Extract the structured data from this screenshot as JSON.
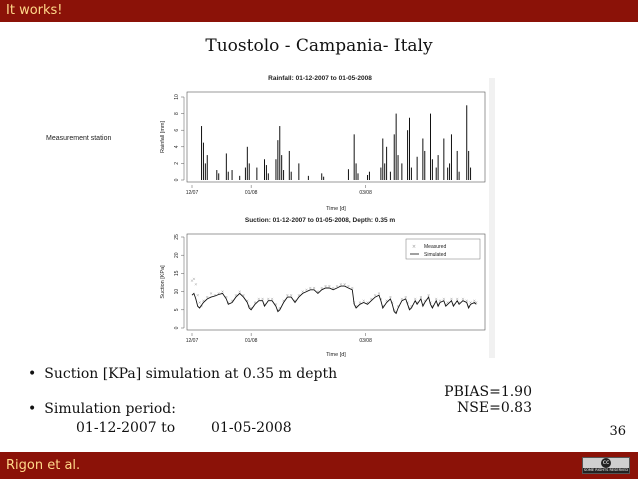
{
  "header": {
    "label": "It works!"
  },
  "footer": {
    "author": "Rigon et al.",
    "license_symbol": "cc",
    "license_text": "SOME RIGHTS RESERVED"
  },
  "slide": {
    "title": "Tuostolo - Campania- Italy",
    "station_label": "Measurement station",
    "bullets": {
      "b1": "Suction [KPa] simulation at 0.35 m depth",
      "b2": "Simulation period:",
      "start": "01-12-2007 to",
      "end": "01-05-2008"
    },
    "stats": {
      "pbias": "PBIAS=1.90",
      "nse": "NSE=0.83"
    },
    "page_number": "36"
  },
  "chart_data": [
    {
      "type": "bar",
      "title": "Rainfall: 01-12-2007 to 01-05-2008",
      "xlabel": "Time [d]",
      "ylabel": "Rainfall [mm]",
      "ylim": [
        0,
        10
      ],
      "yticks": [
        0,
        2,
        4,
        6,
        8,
        10
      ],
      "xticks": [
        "12/07",
        "01/08",
        "03/08"
      ],
      "x_day_range": [
        0,
        152
      ],
      "xtick_days": [
        0,
        31,
        91
      ],
      "series": [
        {
          "values": [
            [
              5,
              6.5
            ],
            [
              6,
              4.5
            ],
            [
              7,
              2
            ],
            [
              8,
              3
            ],
            [
              13,
              1.2
            ],
            [
              14,
              0.8
            ],
            [
              18,
              3.2
            ],
            [
              19,
              1
            ],
            [
              21,
              1.2
            ],
            [
              25,
              0.5
            ],
            [
              28,
              1.5
            ],
            [
              29,
              4
            ],
            [
              30,
              2
            ],
            [
              34,
              1.5
            ],
            [
              38,
              2.5
            ],
            [
              39,
              1.8
            ],
            [
              40,
              0.8
            ],
            [
              44,
              2.5
            ],
            [
              45,
              4.8
            ],
            [
              46,
              6.5
            ],
            [
              47,
              3
            ],
            [
              48,
              1.2
            ],
            [
              51,
              3.5
            ],
            [
              52,
              1
            ],
            [
              56,
              2
            ],
            [
              61,
              0.5
            ],
            [
              68,
              0.8
            ],
            [
              69,
              0.4
            ],
            [
              82,
              1.3
            ],
            [
              85,
              5.5
            ],
            [
              86,
              2
            ],
            [
              87,
              0.8
            ],
            [
              92,
              0.6
            ],
            [
              93,
              1
            ],
            [
              99,
              1.5
            ],
            [
              100,
              5
            ],
            [
              101,
              2
            ],
            [
              102,
              4
            ],
            [
              104,
              1
            ],
            [
              106,
              5.5
            ],
            [
              107,
              8
            ],
            [
              108,
              3
            ],
            [
              110,
              2
            ],
            [
              113,
              6
            ],
            [
              114,
              7.5
            ],
            [
              115,
              1.5
            ],
            [
              118,
              2.8
            ],
            [
              121,
              5
            ],
            [
              122,
              3.5
            ],
            [
              125,
              8
            ],
            [
              126,
              2.5
            ],
            [
              128,
              1.5
            ],
            [
              129,
              3
            ],
            [
              132,
              5
            ],
            [
              134,
              1.5
            ],
            [
              135,
              2
            ],
            [
              136,
              5.5
            ],
            [
              139,
              3.5
            ],
            [
              140,
              1
            ],
            [
              144,
              9
            ],
            [
              145,
              3.5
            ],
            [
              146,
              1.5
            ]
          ]
        }
      ]
    },
    {
      "type": "line",
      "title": "Suction: 01-12-2007 to 01-05-2008, Depth: 0.35 m",
      "xlabel": "Time [d]",
      "ylabel": "Suction [KPa]",
      "ylim": [
        0,
        25
      ],
      "yticks": [
        0,
        5,
        10,
        15,
        20,
        25
      ],
      "xticks": [
        "12/07",
        "01/08",
        "03/08"
      ],
      "x_day_range": [
        0,
        152
      ],
      "xtick_days": [
        0,
        31,
        91
      ],
      "legend": "top-right",
      "series": [
        {
          "name": "Measured",
          "style": "points",
          "color": "#9a9a9a",
          "values": [
            [
              0,
              13
            ],
            [
              1,
              13.5
            ],
            [
              2,
              12
            ],
            [
              3,
              9
            ],
            [
              4,
              7
            ],
            [
              5,
              6
            ],
            [
              6,
              7.5
            ],
            [
              8,
              8.5
            ],
            [
              10,
              9.5
            ],
            [
              12,
              9
            ],
            [
              14,
              9.5
            ],
            [
              16,
              10
            ],
            [
              18,
              8.5
            ],
            [
              19,
              7
            ],
            [
              21,
              7.5
            ],
            [
              23,
              9
            ],
            [
              25,
              10
            ],
            [
              27,
              9
            ],
            [
              29,
              7.5
            ],
            [
              30,
              6
            ],
            [
              31,
              5.5
            ],
            [
              33,
              7
            ],
            [
              35,
              8
            ],
            [
              37,
              8
            ],
            [
              38,
              6.5
            ],
            [
              40,
              8
            ],
            [
              42,
              8
            ],
            [
              44,
              6.5
            ],
            [
              45,
              5
            ],
            [
              46,
              5.5
            ],
            [
              48,
              7.5
            ],
            [
              50,
              9
            ],
            [
              52,
              9
            ],
            [
              54,
              7.5
            ],
            [
              56,
              9
            ],
            [
              58,
              10
            ],
            [
              60,
              10.5
            ],
            [
              62,
              11
            ],
            [
              64,
              11
            ],
            [
              66,
              10
            ],
            [
              68,
              11
            ],
            [
              70,
              11.5
            ],
            [
              72,
              11.5
            ],
            [
              74,
              11
            ],
            [
              76,
              11.5
            ],
            [
              78,
              12
            ],
            [
              80,
              12
            ],
            [
              82,
              11.5
            ],
            [
              84,
              11
            ],
            [
              85,
              7
            ],
            [
              86,
              6
            ],
            [
              88,
              7
            ],
            [
              90,
              7.5
            ],
            [
              92,
              7
            ],
            [
              94,
              8
            ],
            [
              96,
              9
            ],
            [
              98,
              9.5
            ],
            [
              99,
              8
            ],
            [
              100,
              6
            ],
            [
              102,
              7.5
            ],
            [
              104,
              8.5
            ],
            [
              105,
              7
            ],
            [
              106,
              5
            ],
            [
              107,
              4.5
            ],
            [
              108,
              6
            ],
            [
              110,
              8
            ],
            [
              112,
              8.5
            ],
            [
              113,
              7
            ],
            [
              114,
              5.5
            ],
            [
              115,
              6
            ],
            [
              117,
              8
            ],
            [
              118,
              7
            ],
            [
              120,
              8.5
            ],
            [
              121,
              6.5
            ],
            [
              122,
              7.5
            ],
            [
              124,
              9
            ],
            [
              125,
              7
            ],
            [
              126,
              6
            ],
            [
              128,
              8
            ],
            [
              129,
              6.5
            ],
            [
              130,
              7.5
            ],
            [
              132,
              8
            ],
            [
              133,
              6.5
            ],
            [
              134,
              7
            ],
            [
              136,
              8
            ],
            [
              137,
              6.5
            ],
            [
              139,
              8
            ],
            [
              140,
              7
            ],
            [
              142,
              8
            ],
            [
              144,
              7.5
            ],
            [
              145,
              6
            ],
            [
              146,
              7
            ],
            [
              148,
              7.5
            ],
            [
              149,
              7
            ]
          ]
        },
        {
          "name": "Simulated",
          "style": "line",
          "color": "#111111",
          "values": [
            [
              0,
              9
            ],
            [
              1,
              9.5
            ],
            [
              2,
              8
            ],
            [
              3,
              6
            ],
            [
              4,
              5.5
            ],
            [
              6,
              7
            ],
            [
              8,
              8
            ],
            [
              10,
              8.5
            ],
            [
              12,
              8.8
            ],
            [
              14,
              9.2
            ],
            [
              16,
              9.5
            ],
            [
              18,
              8
            ],
            [
              19,
              6.5
            ],
            [
              21,
              7
            ],
            [
              23,
              8.5
            ],
            [
              25,
              9.5
            ],
            [
              27,
              8.5
            ],
            [
              29,
              7
            ],
            [
              30,
              5.5
            ],
            [
              31,
              5
            ],
            [
              33,
              6.5
            ],
            [
              35,
              7.5
            ],
            [
              37,
              7.5
            ],
            [
              38,
              6
            ],
            [
              40,
              7.5
            ],
            [
              42,
              7.5
            ],
            [
              44,
              6
            ],
            [
              45,
              4.5
            ],
            [
              46,
              5
            ],
            [
              48,
              7
            ],
            [
              50,
              8.5
            ],
            [
              52,
              8.5
            ],
            [
              54,
              7
            ],
            [
              56,
              8.5
            ],
            [
              58,
              9.5
            ],
            [
              60,
              10
            ],
            [
              62,
              10.5
            ],
            [
              64,
              10.5
            ],
            [
              66,
              9.5
            ],
            [
              68,
              10.5
            ],
            [
              70,
              11
            ],
            [
              72,
              11
            ],
            [
              74,
              10.5
            ],
            [
              76,
              11
            ],
            [
              78,
              11.5
            ],
            [
              80,
              11.5
            ],
            [
              82,
              11
            ],
            [
              84,
              10.5
            ],
            [
              85,
              6.5
            ],
            [
              86,
              5.5
            ],
            [
              88,
              6.5
            ],
            [
              90,
              7
            ],
            [
              92,
              6.5
            ],
            [
              94,
              7.5
            ],
            [
              96,
              8.5
            ],
            [
              98,
              9
            ],
            [
              99,
              7.5
            ],
            [
              100,
              5.5
            ],
            [
              102,
              7
            ],
            [
              104,
              8
            ],
            [
              105,
              6.5
            ],
            [
              106,
              4.5
            ],
            [
              107,
              4
            ],
            [
              108,
              5.5
            ],
            [
              110,
              7.5
            ],
            [
              112,
              8
            ],
            [
              113,
              6.5
            ],
            [
              114,
              5
            ],
            [
              115,
              5.5
            ],
            [
              117,
              7.5
            ],
            [
              118,
              6.5
            ],
            [
              120,
              8
            ],
            [
              121,
              6
            ],
            [
              122,
              7
            ],
            [
              124,
              8.5
            ],
            [
              125,
              6.5
            ],
            [
              126,
              5.5
            ],
            [
              128,
              7.5
            ],
            [
              129,
              6
            ],
            [
              130,
              7
            ],
            [
              132,
              7.5
            ],
            [
              133,
              6
            ],
            [
              134,
              6.5
            ],
            [
              136,
              7.5
            ],
            [
              137,
              6
            ],
            [
              139,
              7.5
            ],
            [
              140,
              6.5
            ],
            [
              142,
              7.5
            ],
            [
              144,
              7
            ],
            [
              145,
              5.5
            ],
            [
              146,
              6.5
            ],
            [
              148,
              7
            ],
            [
              149,
              6.5
            ]
          ]
        }
      ]
    }
  ]
}
